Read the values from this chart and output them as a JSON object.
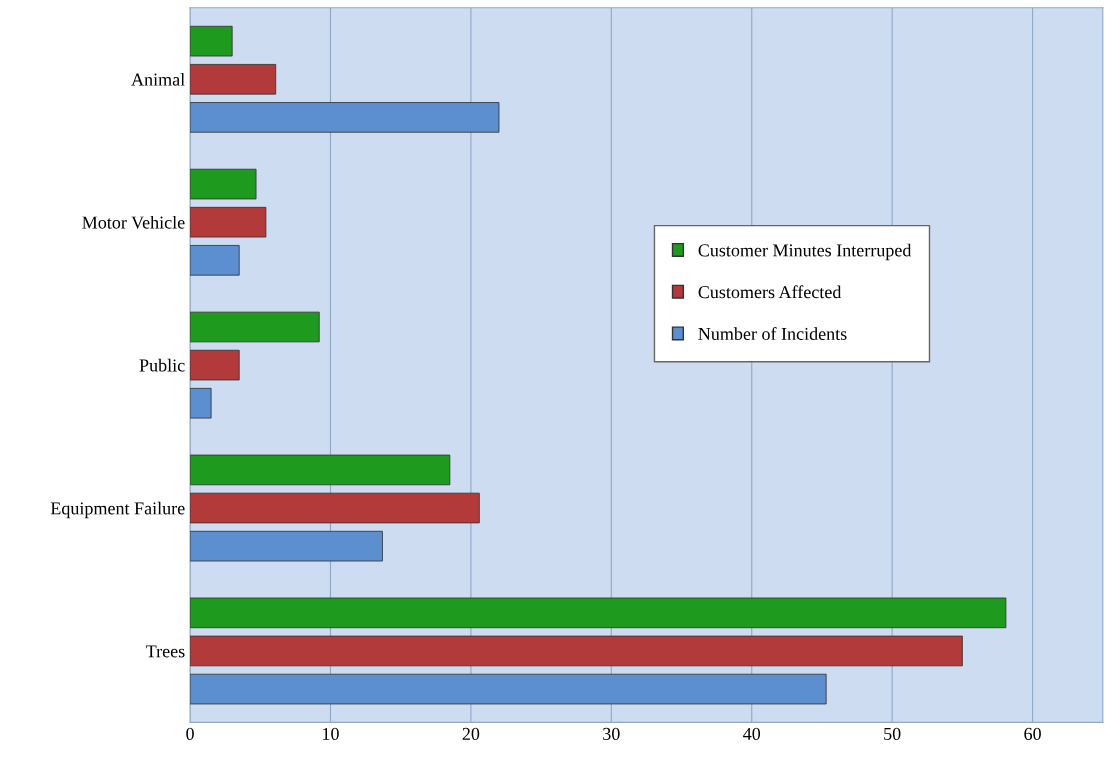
{
  "chart_data": {
    "type": "bar",
    "orientation": "horizontal",
    "categories": [
      "Animal",
      "Motor Vehicle",
      "Public",
      "Equipment Failure",
      "Trees"
    ],
    "series": [
      {
        "name": "Customer Minutes Interruped",
        "color": "#1e9a1e",
        "values": [
          3.0,
          4.7,
          9.2,
          18.5,
          58.1
        ]
      },
      {
        "name": "Customers Affected",
        "color": "#b23a3a",
        "values": [
          6.1,
          5.4,
          3.5,
          20.6,
          55.0
        ]
      },
      {
        "name": "Number of Incidents",
        "color": "#5b8fd0",
        "values": [
          22.0,
          3.5,
          1.5,
          13.7,
          45.3
        ]
      }
    ],
    "xlim": [
      0,
      65
    ],
    "xticks": [
      0,
      10,
      20,
      30,
      40,
      50,
      60
    ],
    "grid": "x",
    "legend": "right"
  }
}
